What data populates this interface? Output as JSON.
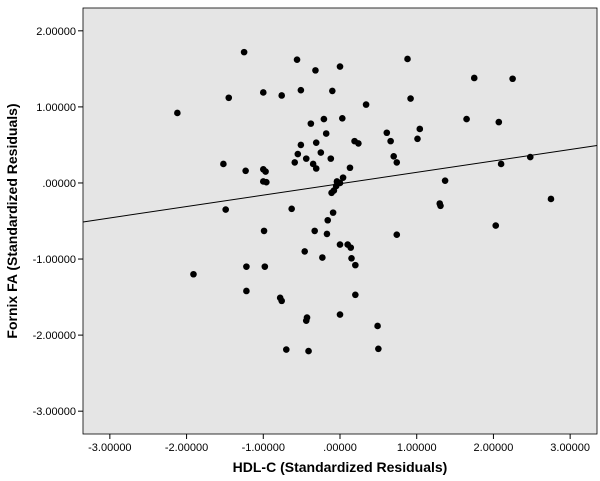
{
  "chart_data": {
    "type": "scatter",
    "xlabel": "HDL-C (Standardized Residuals)",
    "ylabel": "Fornix FA (Standardized Residuals)",
    "xlim": [
      -3.35,
      3.35
    ],
    "ylim": [
      -3.3,
      2.3
    ],
    "xticks": [
      -3,
      -2,
      -1,
      0,
      1,
      2,
      3
    ],
    "xtick_labels": [
      "-3.00000",
      "-2.00000",
      "-1.00000",
      ".00000",
      "1.00000",
      "2.00000",
      "3.00000"
    ],
    "yticks": [
      2,
      1,
      0,
      -1,
      -2,
      -3
    ],
    "ytick_labels": [
      "2.00000",
      "1.00000",
      ".00000",
      "-1.00000",
      "-2.00000",
      "-3.00000"
    ],
    "grid": false,
    "background": "#e5e5e5",
    "marker_color": "#000000",
    "fit_line": {
      "slope": 0.15,
      "intercept": -0.01
    },
    "points": [
      [
        -1.25,
        1.72
      ],
      [
        -0.56,
        1.62
      ],
      [
        0.88,
        1.63
      ],
      [
        -0.32,
        1.48
      ],
      [
        0.0,
        1.53
      ],
      [
        1.75,
        1.38
      ],
      [
        2.25,
        1.37
      ],
      [
        -2.12,
        0.92
      ],
      [
        -1.45,
        1.12
      ],
      [
        -1.0,
        1.19
      ],
      [
        -0.76,
        1.15
      ],
      [
        -0.51,
        1.22
      ],
      [
        -0.1,
        1.21
      ],
      [
        0.92,
        1.11
      ],
      [
        0.34,
        1.03
      ],
      [
        -0.38,
        0.78
      ],
      [
        -0.21,
        0.84
      ],
      [
        0.03,
        0.85
      ],
      [
        1.65,
        0.84
      ],
      [
        2.07,
        0.8
      ],
      [
        1.04,
        0.71
      ],
      [
        -0.18,
        0.65
      ],
      [
        0.61,
        0.66
      ],
      [
        0.66,
        0.55
      ],
      [
        1.01,
        0.58
      ],
      [
        -0.51,
        0.5
      ],
      [
        -0.31,
        0.53
      ],
      [
        0.19,
        0.55
      ],
      [
        0.24,
        0.52
      ],
      [
        -0.55,
        0.38
      ],
      [
        -0.25,
        0.4
      ],
      [
        -0.59,
        0.27
      ],
      [
        -0.44,
        0.32
      ],
      [
        -0.35,
        0.25
      ],
      [
        -0.12,
        0.32
      ],
      [
        0.7,
        0.35
      ],
      [
        0.74,
        0.27
      ],
      [
        2.48,
        0.34
      ],
      [
        2.1,
        0.25
      ],
      [
        -1.52,
        0.25
      ],
      [
        -1.23,
        0.16
      ],
      [
        -1.0,
        0.18
      ],
      [
        -0.97,
        0.15
      ],
      [
        -0.31,
        0.19
      ],
      [
        0.13,
        0.2
      ],
      [
        -1.0,
        0.02
      ],
      [
        -0.96,
        0.01
      ],
      [
        -0.04,
        0.02
      ],
      [
        0.0,
        0.0
      ],
      [
        0.04,
        0.07
      ],
      [
        1.37,
        0.03
      ],
      [
        -0.05,
        -0.04
      ],
      [
        -0.08,
        -0.1
      ],
      [
        -0.11,
        -0.13
      ],
      [
        -1.49,
        -0.35
      ],
      [
        -0.63,
        -0.34
      ],
      [
        -0.09,
        -0.39
      ],
      [
        -0.16,
        -0.49
      ],
      [
        1.3,
        -0.27
      ],
      [
        1.31,
        -0.3
      ],
      [
        2.75,
        -0.21
      ],
      [
        2.03,
        -0.56
      ],
      [
        -0.99,
        -0.63
      ],
      [
        -0.33,
        -0.63
      ],
      [
        -0.17,
        -0.67
      ],
      [
        0.74,
        -0.68
      ],
      [
        -0.46,
        -0.9
      ],
      [
        -0.23,
        -0.98
      ],
      [
        0.0,
        -0.81
      ],
      [
        0.14,
        -0.85
      ],
      [
        0.1,
        -0.81
      ],
      [
        0.15,
        -0.99
      ],
      [
        0.2,
        -1.08
      ],
      [
        -1.22,
        -1.1
      ],
      [
        -0.98,
        -1.1
      ],
      [
        -1.91,
        -1.2
      ],
      [
        -1.22,
        -1.42
      ],
      [
        -0.78,
        -1.51
      ],
      [
        -0.76,
        -1.55
      ],
      [
        0.2,
        -1.47
      ],
      [
        -0.43,
        -1.77
      ],
      [
        -0.44,
        -1.81
      ],
      [
        0.0,
        -1.73
      ],
      [
        0.49,
        -1.88
      ],
      [
        -0.7,
        -2.19
      ],
      [
        -0.41,
        -2.21
      ],
      [
        0.5,
        -2.18
      ]
    ]
  }
}
